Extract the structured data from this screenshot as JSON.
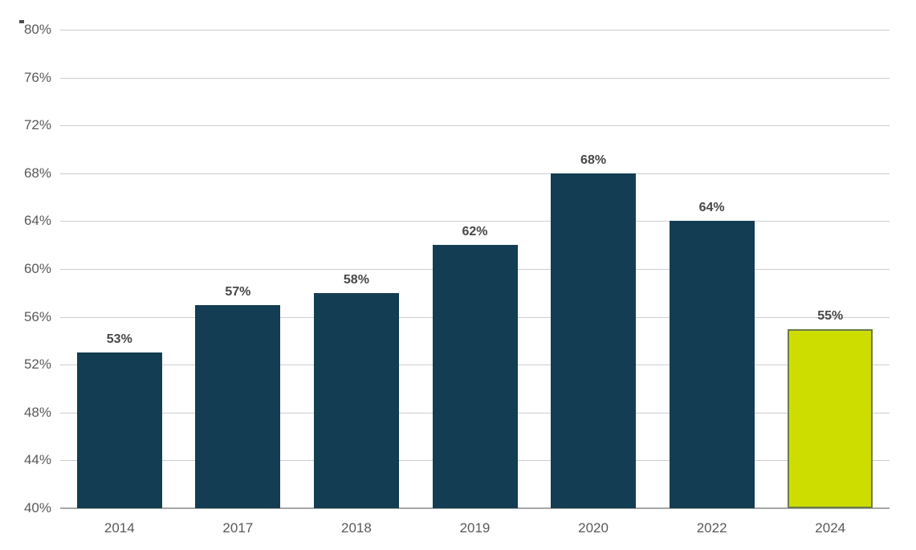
{
  "chart_data": {
    "type": "bar",
    "title": "",
    "xlabel": "",
    "ylabel": "",
    "categories": [
      "2014",
      "2017",
      "2018",
      "2019",
      "2020",
      "2022",
      "2024"
    ],
    "values": [
      53,
      57,
      58,
      62,
      68,
      64,
      55
    ],
    "value_labels": [
      "53%",
      "57%",
      "58%",
      "62%",
      "68%",
      "64%",
      "55%"
    ],
    "ylim": [
      40,
      80
    ],
    "ytick_step": 4,
    "ytick_labels": [
      "80%",
      "76%",
      "72%",
      "68%",
      "64%",
      "60%",
      "56%",
      "52%",
      "48%",
      "44%",
      "40%"
    ],
    "ytick_values": [
      80,
      76,
      72,
      68,
      64,
      60,
      56,
      52,
      48,
      44,
      40
    ],
    "grid": true,
    "legend": false,
    "highlight_index": 6,
    "colors": {
      "bar": "#133D52",
      "highlight_bar": "#CDDD00",
      "highlight_border": "#697C45",
      "gridline": "#C9CDD2",
      "axis_line": "#A6A6A6",
      "tick_label": "#595959",
      "data_label": "#474747",
      "background": "#FFFFFF"
    }
  }
}
